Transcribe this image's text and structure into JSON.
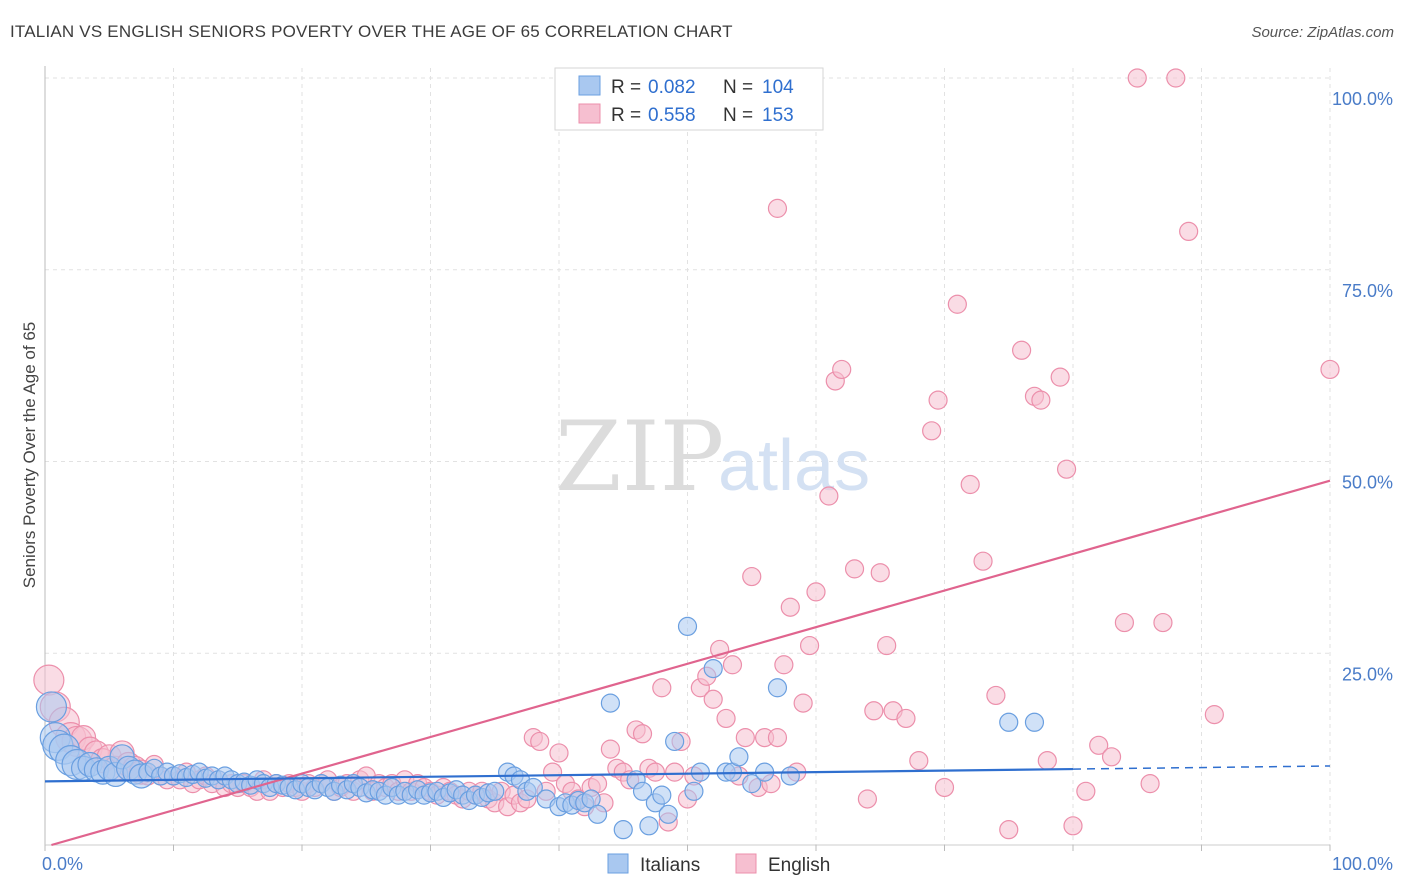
{
  "title": "ITALIAN VS ENGLISH SENIORS POVERTY OVER THE AGE OF 65 CORRELATION CHART",
  "source": "Source: ZipAtlas.com",
  "watermark": {
    "zip": "ZIP",
    "atlas": "atlas"
  },
  "colors": {
    "italians_fill": "#a9c8f0",
    "italians_stroke": "#6a9fe0",
    "italians_line": "#2f6fcf",
    "english_fill": "#f6bfd0",
    "english_stroke": "#ec8fab",
    "english_line": "#e0648e",
    "grid": "#e2e2e2",
    "tick": "#4a7cc8"
  },
  "stats": {
    "r_label": "R =",
    "n_label": "N =",
    "italians": {
      "r": "0.082",
      "n": "104"
    },
    "english": {
      "r": "0.558",
      "n": "153"
    }
  },
  "chart_data": {
    "type": "scatter",
    "title": "ITALIAN VS ENGLISH SENIORS POVERTY OVER THE AGE OF 65 CORRELATION CHART",
    "xlabel": "",
    "ylabel": "Seniors Poverty Over the Age of 65",
    "xlim": [
      0,
      100
    ],
    "ylim": [
      0,
      100
    ],
    "x_tick_labels": [
      "0.0%",
      "100.0%"
    ],
    "y_ticks": [
      25,
      50,
      75,
      100
    ],
    "y_tick_labels": [
      "25.0%",
      "50.0%",
      "75.0%",
      "100.0%"
    ],
    "grid": true,
    "legend": {
      "placement": "bottom",
      "entries": [
        "Italians",
        "English"
      ]
    },
    "series": [
      {
        "name": "Italians",
        "trend": {
          "x": [
            0,
            80
          ],
          "y": [
            8.3,
            9.9
          ],
          "dashed_to": [
            100,
            10.3
          ]
        },
        "points": [
          [
            0.5,
            18
          ],
          [
            0.8,
            14
          ],
          [
            1,
            13
          ],
          [
            1.5,
            12.5
          ],
          [
            2,
            11
          ],
          [
            2.5,
            10.5
          ],
          [
            3,
            10
          ],
          [
            3.5,
            10.5
          ],
          [
            4,
            9.8
          ],
          [
            4.5,
            9.5
          ],
          [
            5,
            10
          ],
          [
            5.5,
            9.2
          ],
          [
            6,
            11.5
          ],
          [
            6.5,
            10
          ],
          [
            7,
            9.5
          ],
          [
            7.5,
            9
          ],
          [
            8,
            9.5
          ],
          [
            8.5,
            10
          ],
          [
            9,
            9
          ],
          [
            9.5,
            9.5
          ],
          [
            10,
            9
          ],
          [
            10.5,
            9.3
          ],
          [
            11,
            8.8
          ],
          [
            11.5,
            9.2
          ],
          [
            12,
            9.5
          ],
          [
            12.5,
            8.7
          ],
          [
            13,
            9
          ],
          [
            13.5,
            8.5
          ],
          [
            14,
            9
          ],
          [
            14.5,
            8.5
          ],
          [
            15,
            8
          ],
          [
            15.5,
            8.2
          ],
          [
            16,
            7.8
          ],
          [
            16.5,
            8.5
          ],
          [
            17,
            8
          ],
          [
            17.5,
            7.5
          ],
          [
            18,
            8
          ],
          [
            18.5,
            7.8
          ],
          [
            19,
            7.5
          ],
          [
            19.5,
            7.2
          ],
          [
            20,
            8
          ],
          [
            20.5,
            7.5
          ],
          [
            21,
            7.2
          ],
          [
            21.5,
            8
          ],
          [
            22,
            7.5
          ],
          [
            22.5,
            7
          ],
          [
            23,
            7.8
          ],
          [
            23.5,
            7.2
          ],
          [
            24,
            8
          ],
          [
            24.5,
            7.5
          ],
          [
            25,
            6.8
          ],
          [
            25.5,
            7.2
          ],
          [
            26,
            7
          ],
          [
            26.5,
            6.5
          ],
          [
            27,
            7.5
          ],
          [
            27.5,
            6.5
          ],
          [
            28,
            7
          ],
          [
            28.5,
            6.5
          ],
          [
            29,
            7.2
          ],
          [
            29.5,
            6.5
          ],
          [
            30,
            6.8
          ],
          [
            30.5,
            7
          ],
          [
            31,
            6.2
          ],
          [
            31.5,
            6.8
          ],
          [
            32,
            7.2
          ],
          [
            32.5,
            6.5
          ],
          [
            33,
            5.8
          ],
          [
            33.5,
            6.5
          ],
          [
            34,
            6.2
          ],
          [
            34.5,
            6.8
          ],
          [
            35,
            7
          ],
          [
            36,
            9.5
          ],
          [
            36.5,
            9
          ],
          [
            37,
            8.5
          ],
          [
            37.5,
            7
          ],
          [
            38,
            7.5
          ],
          [
            39,
            6
          ],
          [
            40,
            5
          ],
          [
            40.5,
            5.5
          ],
          [
            41,
            5.2
          ],
          [
            41.5,
            5.8
          ],
          [
            42,
            5.5
          ],
          [
            42.5,
            6
          ],
          [
            43,
            4
          ],
          [
            44,
            18.5
          ],
          [
            45,
            2
          ],
          [
            46,
            8.5
          ],
          [
            46.5,
            7
          ],
          [
            47,
            2.5
          ],
          [
            47.5,
            5.5
          ],
          [
            48,
            6.5
          ],
          [
            48.5,
            4
          ],
          [
            49,
            13.5
          ],
          [
            50,
            28.5
          ],
          [
            50.5,
            7
          ],
          [
            51,
            9.5
          ],
          [
            52,
            23
          ],
          [
            53,
            9.5
          ],
          [
            53.5,
            9.5
          ],
          [
            54,
            11.5
          ],
          [
            55,
            8
          ],
          [
            56,
            9.5
          ],
          [
            57,
            20.5
          ],
          [
            58,
            9
          ],
          [
            75,
            16
          ],
          [
            77,
            16
          ]
        ]
      },
      {
        "name": "English",
        "trend": {
          "x": [
            0.5,
            100
          ],
          "y": [
            0,
            47.5
          ]
        },
        "points": [
          [
            0.3,
            21.5
          ],
          [
            0.8,
            18
          ],
          [
            1.5,
            16
          ],
          [
            2,
            14
          ],
          [
            2.5,
            13.5
          ],
          [
            3,
            14
          ],
          [
            3.5,
            12.5
          ],
          [
            4,
            12
          ],
          [
            4.5,
            11
          ],
          [
            5,
            11.5
          ],
          [
            5.5,
            10
          ],
          [
            6,
            12
          ],
          [
            6.5,
            10.5
          ],
          [
            7,
            10
          ],
          [
            7.5,
            9.5
          ],
          [
            8,
            9
          ],
          [
            8.5,
            10.5
          ],
          [
            9,
            9
          ],
          [
            9.5,
            8.5
          ],
          [
            10,
            9
          ],
          [
            10.5,
            8.5
          ],
          [
            11,
            9.5
          ],
          [
            11.5,
            8
          ],
          [
            12,
            8.5
          ],
          [
            12.5,
            9
          ],
          [
            13,
            8
          ],
          [
            13.5,
            8.5
          ],
          [
            14,
            7.5
          ],
          [
            14.5,
            8
          ],
          [
            15,
            7.5
          ],
          [
            15.5,
            8
          ],
          [
            16,
            7.5
          ],
          [
            16.5,
            7
          ],
          [
            17,
            8.5
          ],
          [
            17.5,
            7
          ],
          [
            18,
            8
          ],
          [
            18.5,
            7.5
          ],
          [
            19,
            8
          ],
          [
            19.5,
            7.5
          ],
          [
            20,
            7
          ],
          [
            20.5,
            8
          ],
          [
            21,
            7.5
          ],
          [
            21.5,
            8
          ],
          [
            22,
            8.5
          ],
          [
            22.5,
            7
          ],
          [
            23,
            7.5
          ],
          [
            23.5,
            8
          ],
          [
            24,
            7
          ],
          [
            24.5,
            8.5
          ],
          [
            25,
            9
          ],
          [
            25.5,
            7
          ],
          [
            26,
            8
          ],
          [
            26.5,
            7.5
          ],
          [
            27,
            8
          ],
          [
            27.5,
            7
          ],
          [
            28,
            8.5
          ],
          [
            28.5,
            7
          ],
          [
            29,
            8
          ],
          [
            29.5,
            7.5
          ],
          [
            30,
            7
          ],
          [
            30.5,
            6.5
          ],
          [
            31,
            7.5
          ],
          [
            31.5,
            7
          ],
          [
            32,
            6.5
          ],
          [
            32.5,
            6
          ],
          [
            33,
            7
          ],
          [
            33.5,
            6.5
          ],
          [
            34,
            7
          ],
          [
            34.5,
            6
          ],
          [
            35,
            5.5
          ],
          [
            35.5,
            7
          ],
          [
            36,
            5
          ],
          [
            36.5,
            6.5
          ],
          [
            37,
            5.5
          ],
          [
            37.5,
            6
          ],
          [
            38,
            14
          ],
          [
            38.5,
            13.5
          ],
          [
            39,
            7
          ],
          [
            39.5,
            9.5
          ],
          [
            40,
            12
          ],
          [
            40.5,
            8
          ],
          [
            41,
            7
          ],
          [
            41.5,
            6
          ],
          [
            42,
            5
          ],
          [
            42.5,
            7.5
          ],
          [
            43,
            8
          ],
          [
            43.5,
            5.5
          ],
          [
            44,
            12.5
          ],
          [
            44.5,
            10
          ],
          [
            45,
            9.5
          ],
          [
            45.5,
            8.5
          ],
          [
            46,
            15
          ],
          [
            46.5,
            14.5
          ],
          [
            47,
            10
          ],
          [
            47.5,
            9.5
          ],
          [
            48,
            20.5
          ],
          [
            48.5,
            3
          ],
          [
            49,
            9.5
          ],
          [
            49.5,
            13.5
          ],
          [
            50,
            6
          ],
          [
            50.5,
            9
          ],
          [
            51,
            20.5
          ],
          [
            51.5,
            22
          ],
          [
            52,
            19
          ],
          [
            52.5,
            25.5
          ],
          [
            53,
            16.5
          ],
          [
            53.5,
            23.5
          ],
          [
            54,
            9
          ],
          [
            54.5,
            14
          ],
          [
            55,
            35
          ],
          [
            55.5,
            7.5
          ],
          [
            56,
            14
          ],
          [
            56.5,
            8
          ],
          [
            57,
            14
          ],
          [
            57.5,
            23.5
          ],
          [
            58,
            31
          ],
          [
            58.5,
            9.5
          ],
          [
            59,
            18.5
          ],
          [
            59.5,
            26
          ],
          [
            60,
            33
          ],
          [
            61,
            45.5
          ],
          [
            61.5,
            60.5
          ],
          [
            62,
            62
          ],
          [
            63,
            36
          ],
          [
            64,
            6
          ],
          [
            64.5,
            17.5
          ],
          [
            65,
            35.5
          ],
          [
            65.5,
            26
          ],
          [
            66,
            17.5
          ],
          [
            67,
            16.5
          ],
          [
            68,
            11
          ],
          [
            69,
            54
          ],
          [
            69.5,
            58
          ],
          [
            70,
            7.5
          ],
          [
            71,
            70.5
          ],
          [
            72,
            47
          ],
          [
            73,
            37
          ],
          [
            74,
            19.5
          ],
          [
            75,
            2
          ],
          [
            76,
            64.5
          ],
          [
            77,
            58.5
          ],
          [
            77.5,
            58
          ],
          [
            78,
            11
          ],
          [
            79,
            61
          ],
          [
            79.5,
            49
          ],
          [
            80,
            2.5
          ],
          [
            81,
            7
          ],
          [
            82,
            13
          ],
          [
            83,
            11.5
          ],
          [
            84,
            29
          ],
          [
            85,
            100
          ],
          [
            86,
            8
          ],
          [
            87,
            29
          ],
          [
            88,
            100
          ],
          [
            89,
            80
          ],
          [
            91,
            17
          ],
          [
            100,
            62
          ],
          [
            57,
            83
          ]
        ]
      }
    ]
  }
}
